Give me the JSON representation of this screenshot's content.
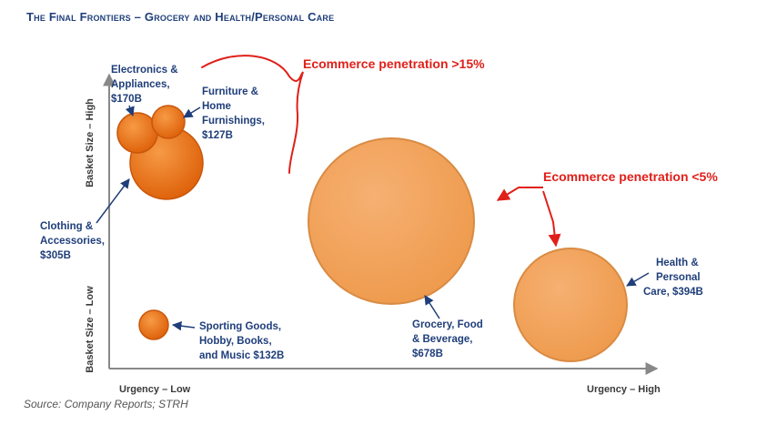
{
  "title": "The Final Frontiers – Grocery and Health/Personal Care",
  "source": "Source: Company Reports; STRH",
  "chart_data": {
    "type": "bubble",
    "x_axis": {
      "low_label": "Urgency – Low",
      "high_label": "Urgency – High"
    },
    "y_axis": {
      "low_label": "Basket Size – Low",
      "high_label": "Basket Size – High"
    },
    "bubbles": [
      {
        "category": "Electronics & Appliances",
        "value_label": "$170B",
        "value": 170,
        "urgency": "Low",
        "basket_size": "High",
        "color": "#e86a12"
      },
      {
        "category": "Furniture & Home Furnishings",
        "value_label": "$127B",
        "value": 127,
        "urgency": "Low",
        "basket_size": "High",
        "color": "#e86a12"
      },
      {
        "category": "Clothing & Accessories",
        "value_label": "$305B",
        "value": 305,
        "urgency": "Low",
        "basket_size": "High",
        "color": "#e86a12"
      },
      {
        "category": "Sporting Goods, Hobby, Books, and Music",
        "value_label": "$132B",
        "value": 132,
        "urgency": "Low",
        "basket_size": "Low",
        "color": "#e86a12"
      },
      {
        "category": "Grocery, Food & Beverage",
        "value_label": "$678B",
        "value": 678,
        "urgency": "High",
        "basket_size": "Mid",
        "color": "#f2a65e"
      },
      {
        "category": "Health & Personal Care",
        "value_label": "$394B",
        "value": 394,
        "urgency": "High",
        "basket_size": "Low",
        "color": "#f2a65e"
      }
    ],
    "annotations": [
      {
        "text": "Ecommerce penetration >15%",
        "color": "#e0201a"
      },
      {
        "text": "Ecommerce penetration <5%",
        "color": "#e0201a"
      }
    ],
    "label_lines": {
      "electronics": [
        "Electronics &",
        "Appliances,",
        "$170B"
      ],
      "furniture": [
        "Furniture &",
        "Home",
        "Furnishings,",
        "$127B"
      ],
      "clothing": [
        "Clothing &",
        "Accessories,",
        "$305B"
      ],
      "sporting": [
        "Sporting Goods,",
        "Hobby, Books,",
        "and Music $132B"
      ],
      "grocery": [
        "Grocery, Food",
        "& Beverage,",
        "$678B"
      ],
      "health": [
        "Health &",
        "Personal",
        "Care, $394B"
      ]
    }
  }
}
